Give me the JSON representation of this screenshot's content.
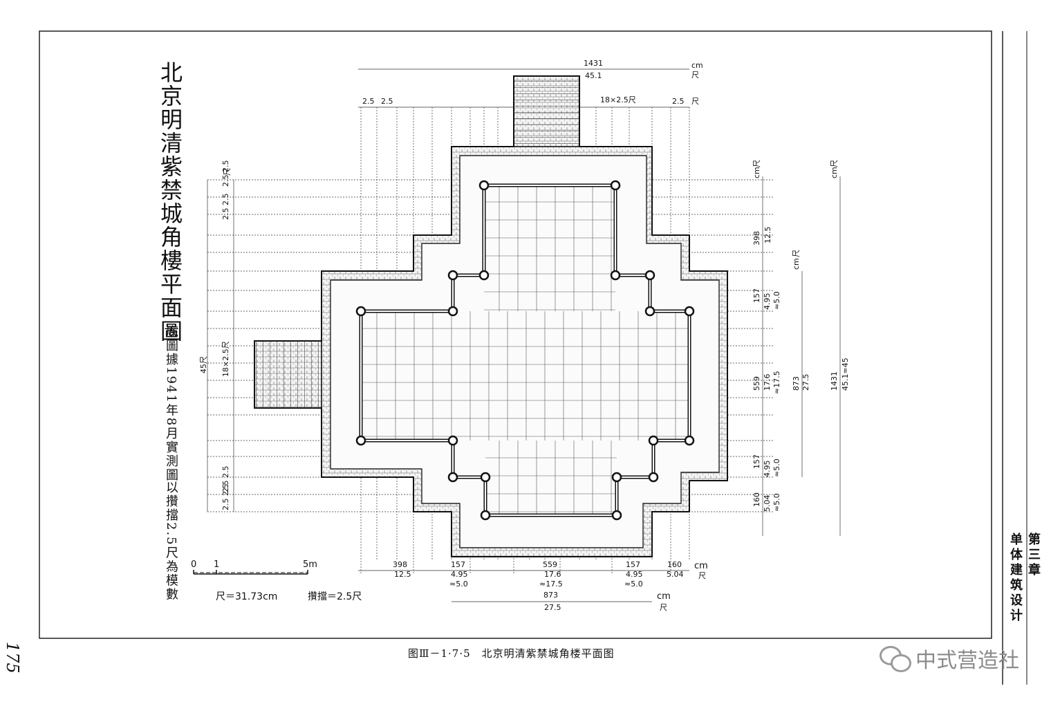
{
  "title": {
    "main": "北京明清紫禁城角樓平面圖",
    "source_note": "底圖據1941年8月實測圖",
    "module_note": "以攢擋2.5尺為模數"
  },
  "caption": "图Ⅲ－1·7·5　北京明清紫禁城角楼平面图",
  "page_number": "175",
  "chapter": {
    "part1": "第三章",
    "part2": "单体建筑设计"
  },
  "watermark": {
    "text": "中式营造社",
    "icon": "wechat-icon"
  },
  "scale_bar": {
    "ticks": [
      "0",
      "1",
      "5m"
    ],
    "chi_note": "尺＝31.73cm",
    "zandang_note": "攢擋＝2.5尺"
  },
  "top_dims": {
    "overall_cm": "1431",
    "overall_chi": "45.1",
    "unit_cm": "cm",
    "unit_chi": "尺",
    "left_a": "2.5",
    "left_b": "2.5",
    "middle": "18×2.5尺",
    "right": "2.5",
    "right_unit": "尺"
  },
  "left_dims": {
    "top_group": "2.5 2.5",
    "top_unit": "尺",
    "top_group_2": "2.5 2.5",
    "middle": "18×2.5尺",
    "overall": "45尺",
    "bottom_group": "2.5 2.5",
    "bottom_group_2": "2.5 2.5"
  },
  "right_dims": {
    "col1_unit_cm": "cm",
    "col1_unit_chi": "尺",
    "col2_unit_cm": "cm",
    "col2_unit_chi": "尺",
    "col3_unit_cm": "cm",
    "col3_unit_chi": "尺",
    "d398_cm": "398",
    "d398_chi": "12.5",
    "d157a_cm": "157",
    "d157a_chi": "4.95",
    "d157a_approx": "≈5.0",
    "d559_cm": "559",
    "d559_chi": "17.6",
    "d559_approx": "≈17.5",
    "d873_cm": "873",
    "d873_chi": "27.5",
    "d157b_cm": "157",
    "d157b_chi": "4.95",
    "d157b_approx": "≈5.0",
    "d160_cm": "160",
    "d160_chi": "5.04",
    "d160_approx": "≈5.0",
    "d1431_cm": "1431",
    "d1431_chi": "45.1≈45"
  },
  "bottom_dims": {
    "d398_cm": "398",
    "d398_chi": "12.5",
    "d157a_cm": "157",
    "d157a_chi": "4.95",
    "d157a_approx": "≈5.0",
    "d559_cm": "559",
    "d559_chi": "17.6",
    "d559_approx": "≈17.5",
    "d157b_cm": "157",
    "d157b_chi": "4.95",
    "d157b_approx": "≈5.0",
    "d160_cm": "160",
    "d160_chi": "5.04",
    "unit_cm": "cm",
    "unit_chi": "尺",
    "d873_cm": "873",
    "d873_chi": "27.5",
    "unit2_cm": "cm",
    "unit2_chi": "尺"
  }
}
